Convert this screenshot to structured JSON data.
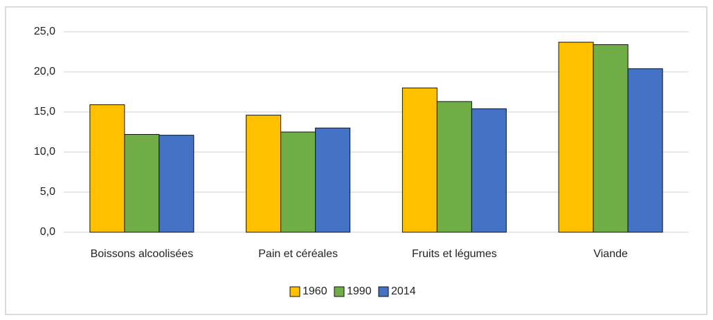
{
  "chart_data": {
    "type": "bar",
    "categories": [
      "Boissons alcoolisées",
      "Pain et céréales",
      "Fruits et légumes",
      "Viande"
    ],
    "series": [
      {
        "name": "1960",
        "color": "#ffc000",
        "values": [
          15.9,
          14.6,
          18.0,
          23.7
        ]
      },
      {
        "name": "1990",
        "color": "#70ad47",
        "values": [
          12.2,
          12.5,
          16.3,
          23.4
        ]
      },
      {
        "name": "2014",
        "color": "#4472c4",
        "values": [
          12.1,
          13.0,
          15.4,
          20.4
        ]
      }
    ],
    "ylim": [
      0,
      25
    ],
    "yticks": [
      {
        "value": 0,
        "label": "0,0"
      },
      {
        "value": 5,
        "label": "5,0"
      },
      {
        "value": 10,
        "label": "10,0"
      },
      {
        "value": 15,
        "label": "15,0"
      },
      {
        "value": 20,
        "label": "20,0"
      },
      {
        "value": 25,
        "label": "25,0"
      }
    ],
    "grid": true,
    "legend": "bottom"
  }
}
